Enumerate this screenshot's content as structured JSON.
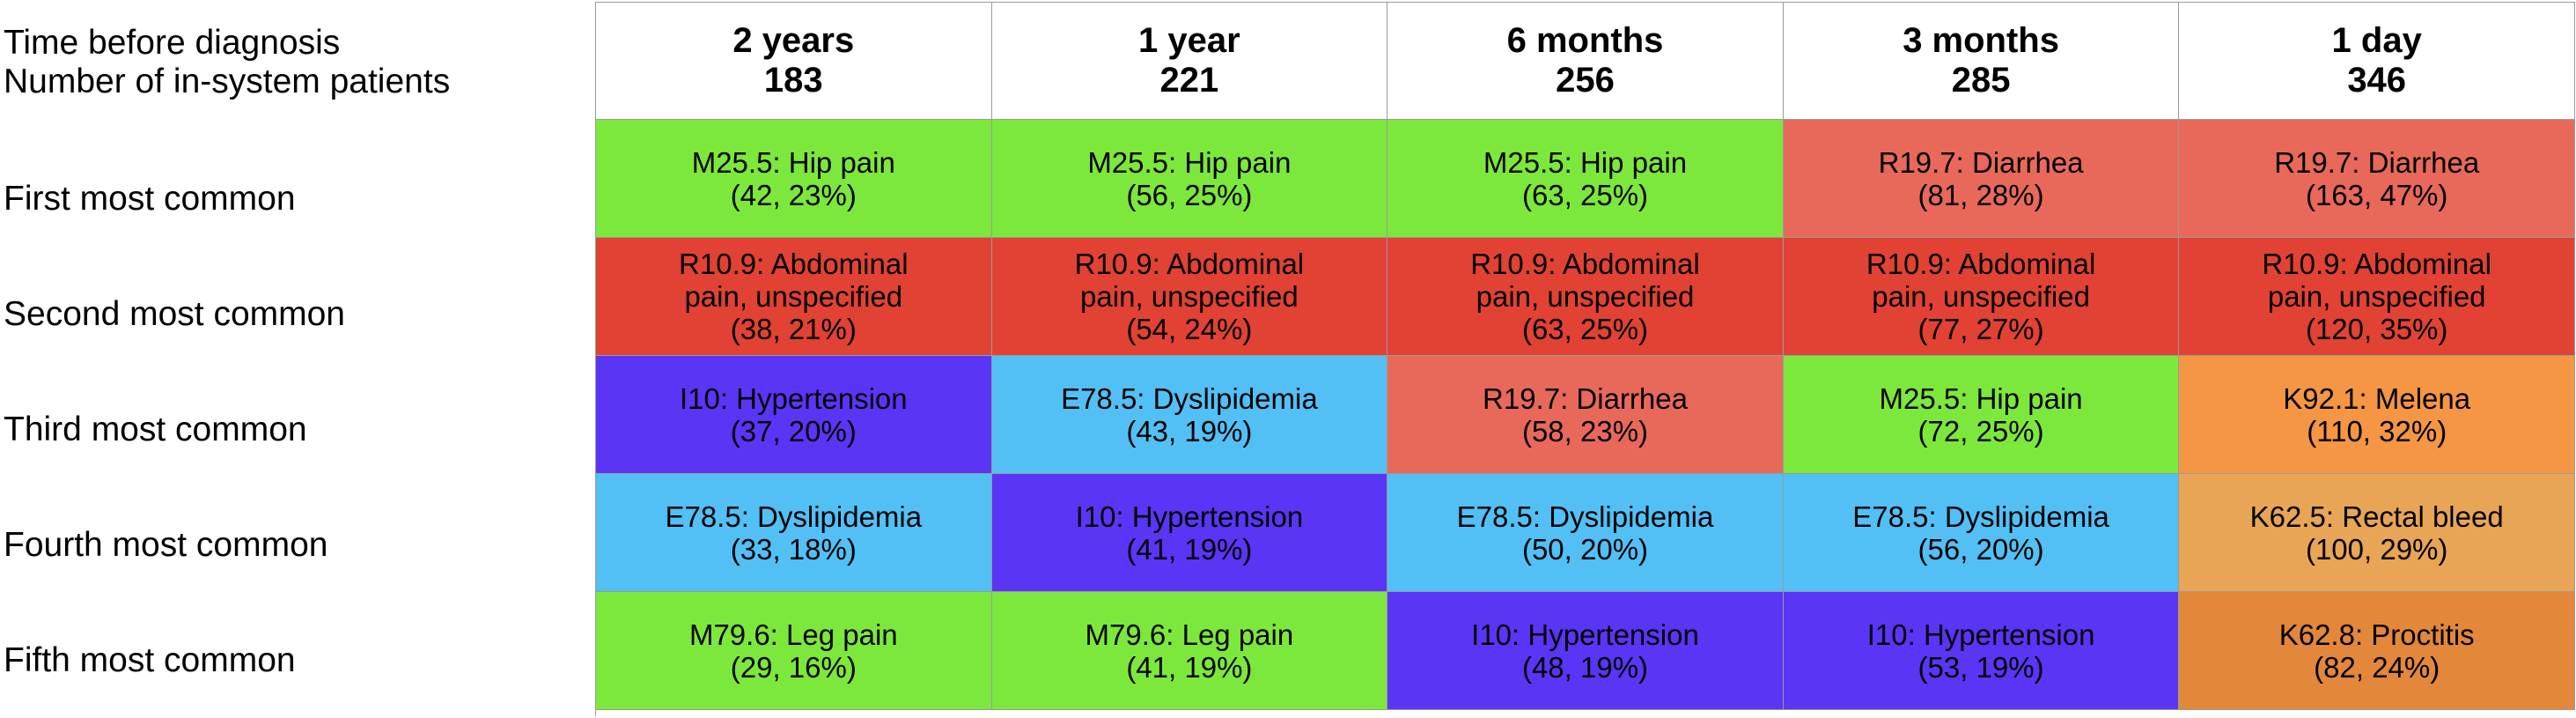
{
  "header": {
    "label_line1": "Time before diagnosis",
    "label_line2": "Number of in-system patients",
    "columns": [
      {
        "period": "2 years",
        "count": "183"
      },
      {
        "period": "1 year",
        "count": "221"
      },
      {
        "period": "6 months",
        "count": "256"
      },
      {
        "period": "3 months",
        "count": "285"
      },
      {
        "period": "1 day",
        "count": "346"
      }
    ]
  },
  "rows": [
    {
      "label": "First most common",
      "cells": [
        {
          "code": "M25.5: Hip pain",
          "stat": "(42, 23%)",
          "color": "#7de83c"
        },
        {
          "code": "M25.5: Hip pain",
          "stat": "(56, 25%)",
          "color": "#7de83c"
        },
        {
          "code": "M25.5: Hip pain",
          "stat": "(63, 25%)",
          "color": "#7de83c"
        },
        {
          "code": "R19.7: Diarrhea",
          "stat": "(81, 28%)",
          "color": "#e8695a"
        },
        {
          "code": "R19.7: Diarrhea",
          "stat": "(163, 47%)",
          "color": "#e8695a"
        }
      ]
    },
    {
      "label": "Second most common",
      "cells": [
        {
          "code": "R10.9: Abdominal pain, unspecified",
          "stat": "(38, 21%)",
          "color": "#e14233"
        },
        {
          "code": "R10.9: Abdominal pain, unspecified",
          "stat": "(54, 24%)",
          "color": "#e14233"
        },
        {
          "code": "R10.9: Abdominal pain, unspecified",
          "stat": "(63, 25%)",
          "color": "#e14233"
        },
        {
          "code": "R10.9: Abdominal pain, unspecified",
          "stat": "(77, 27%)",
          "color": "#e14233"
        },
        {
          "code": "R10.9: Abdominal pain, unspecified",
          "stat": "(120, 35%)",
          "color": "#e14233"
        }
      ]
    },
    {
      "label": "Third most common",
      "cells": [
        {
          "code": "I10: Hypertension",
          "stat": "(37, 20%)",
          "color": "#5a35f5"
        },
        {
          "code": "E78.5: Dyslipidemia",
          "stat": "(43, 19%)",
          "color": "#52c0f5"
        },
        {
          "code": "R19.7: Diarrhea",
          "stat": "(58, 23%)",
          "color": "#e8695a"
        },
        {
          "code": "M25.5: Hip pain",
          "stat": "(72, 25%)",
          "color": "#7de83c"
        },
        {
          "code": "K92.1: Melena",
          "stat": "(110, 32%)",
          "color": "#f49643"
        }
      ]
    },
    {
      "label": "Fourth most common",
      "cells": [
        {
          "code": "E78.5: Dyslipidemia",
          "stat": "(33, 18%)",
          "color": "#52c0f5"
        },
        {
          "code": "I10: Hypertension",
          "stat": "(41, 19%)",
          "color": "#5a35f5"
        },
        {
          "code": "E78.5: Dyslipidemia",
          "stat": "(50, 20%)",
          "color": "#52c0f5"
        },
        {
          "code": "E78.5: Dyslipidemia",
          "stat": "(56, 20%)",
          "color": "#52c0f5"
        },
        {
          "code": "K62.5: Rectal bleed",
          "stat": "(100, 29%)",
          "color": "#e8a555"
        }
      ]
    },
    {
      "label": "Fifth most common",
      "cells": [
        {
          "code": "M79.6: Leg pain",
          "stat": "(29, 16%)",
          "color": "#7de83c"
        },
        {
          "code": "M79.6: Leg pain",
          "stat": "(41, 19%)",
          "color": "#7de83c"
        },
        {
          "code": "I10: Hypertension",
          "stat": "(48, 19%)",
          "color": "#5a35f5"
        },
        {
          "code": "I10: Hypertension",
          "stat": "(53, 19%)",
          "color": "#5a35f5"
        },
        {
          "code": "K62.8: Proctitis",
          "stat": "(82, 24%)",
          "color": "#e3873b"
        }
      ]
    }
  ]
}
